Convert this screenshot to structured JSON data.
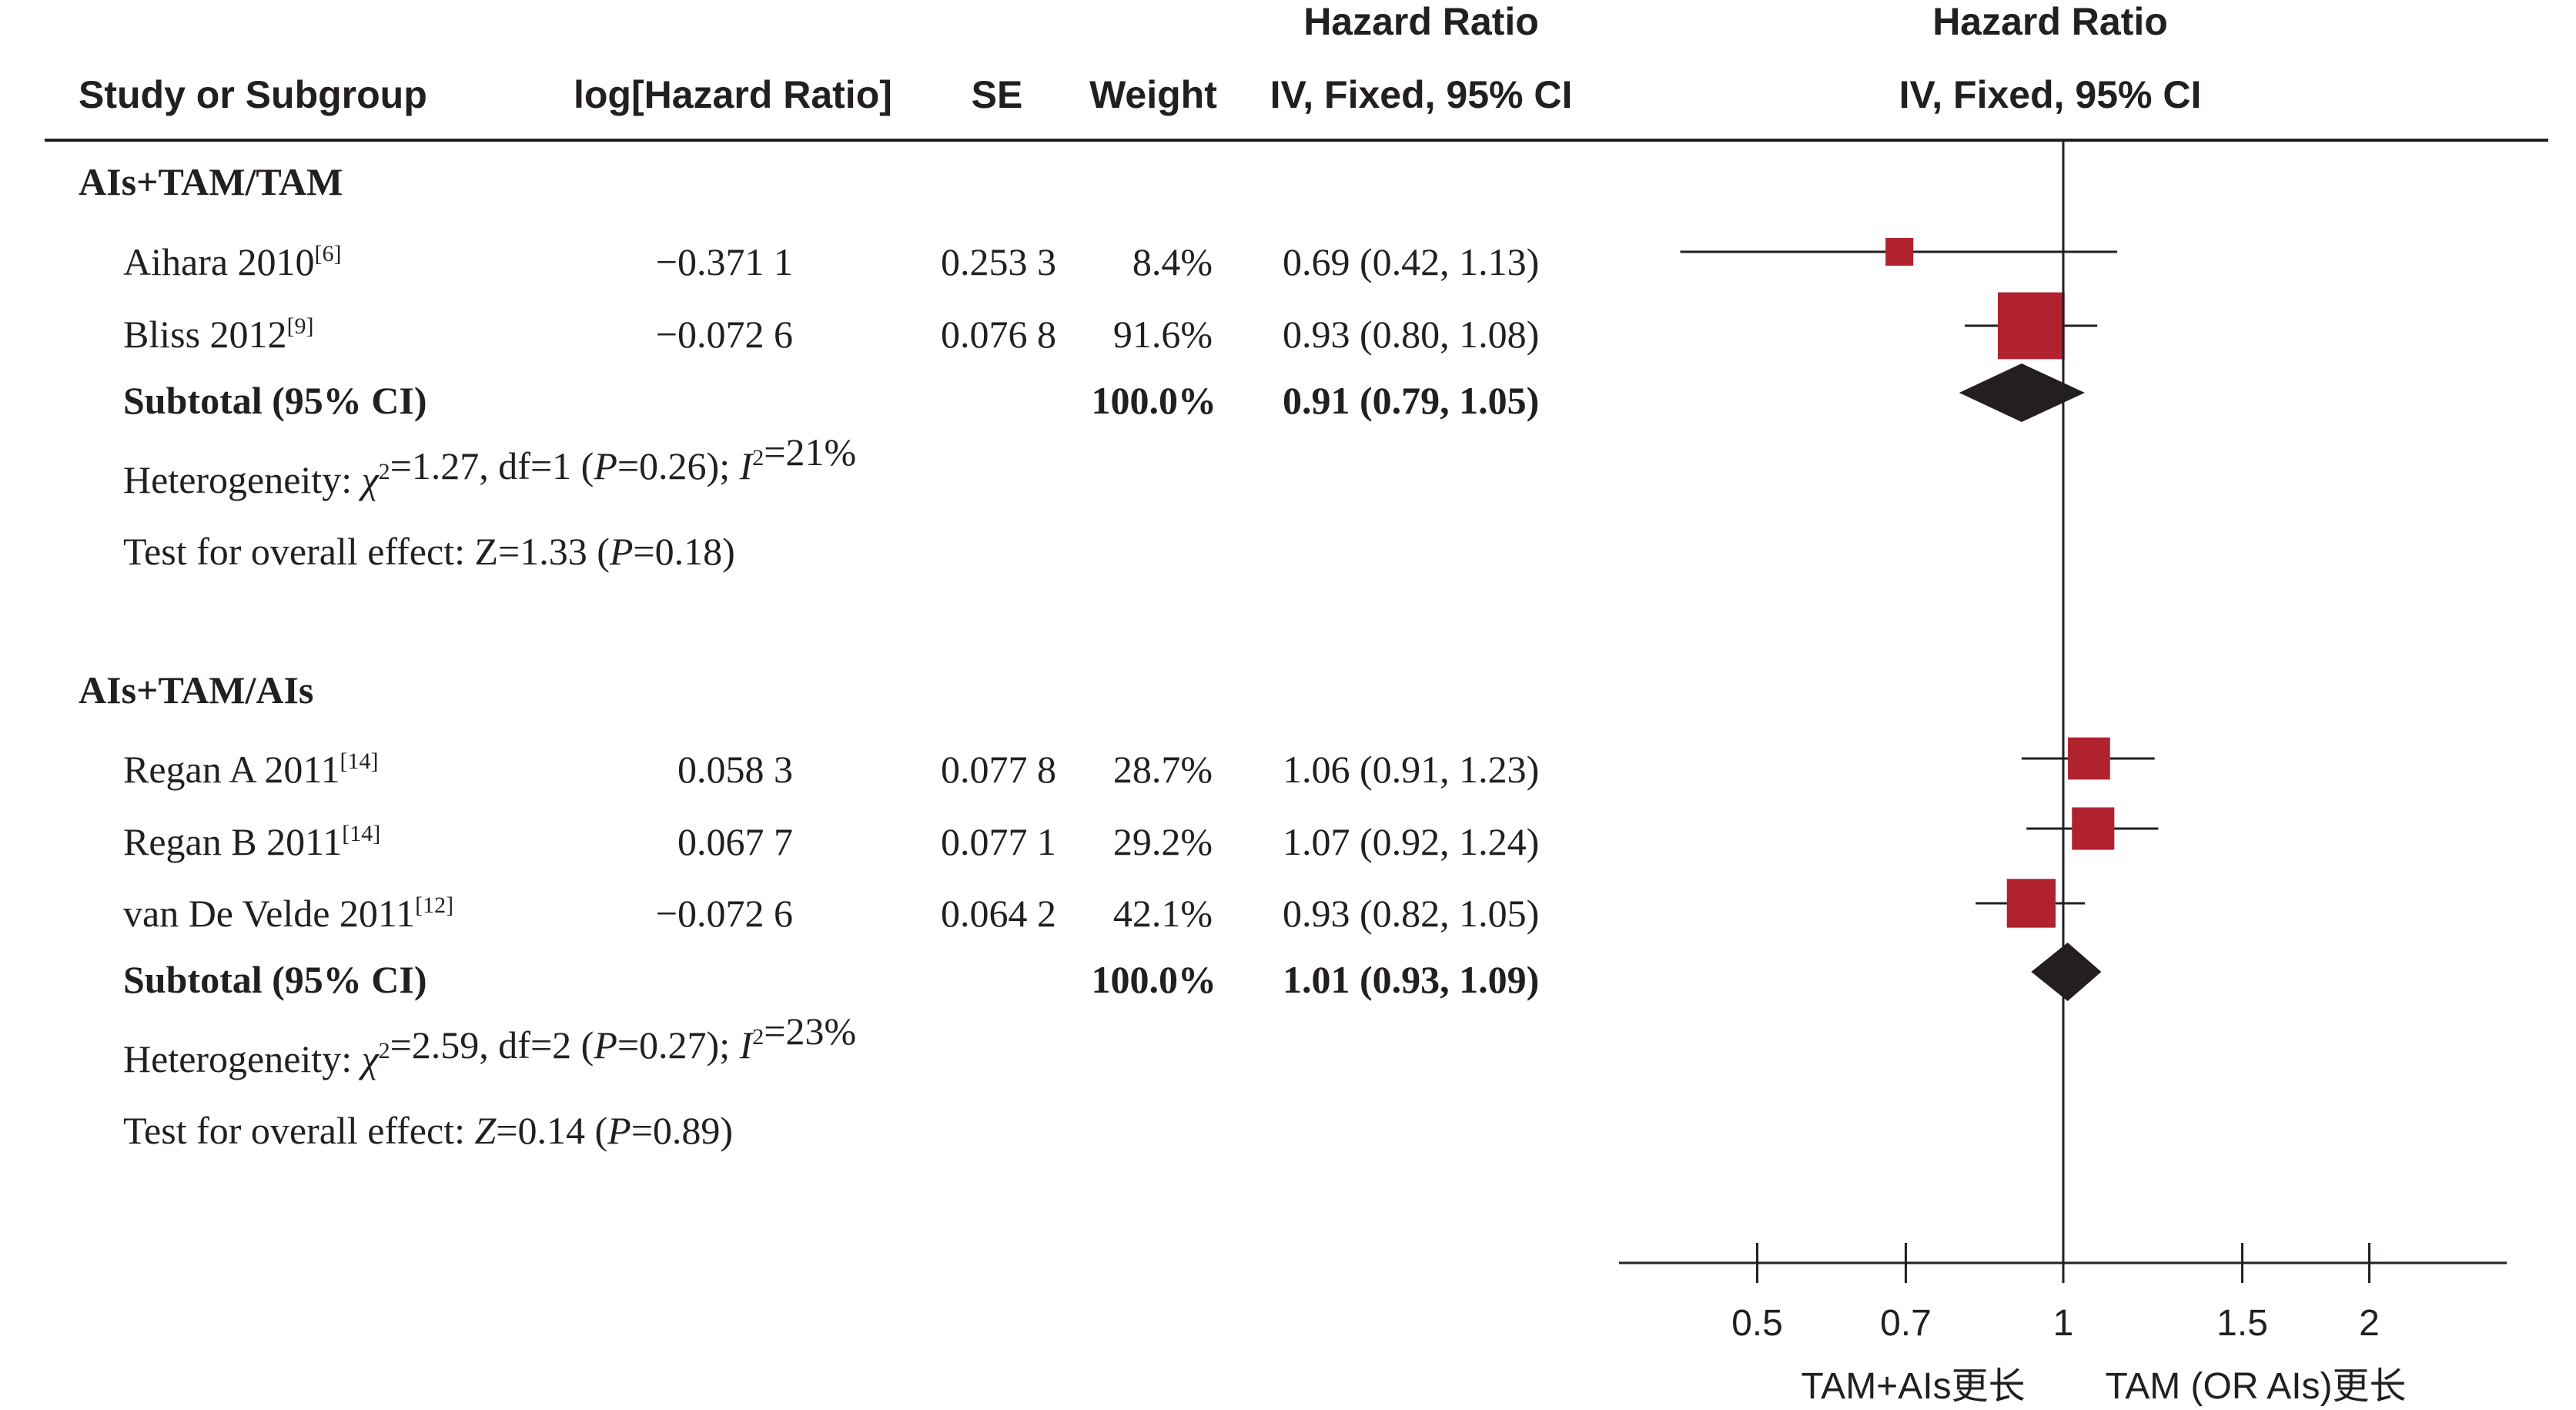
{
  "header": {
    "study": "Study or Subgroup",
    "loghr": "log[Hazard Ratio]",
    "se": "SE",
    "weight": "Weight",
    "hr_title": "Hazard Ratio",
    "hr_method": "IV, Fixed, 95% CI",
    "plot_title": "Hazard Ratio",
    "plot_method": "IV, Fixed, 95% CI"
  },
  "chart_data": {
    "type": "forest",
    "scale": "log",
    "reference_line": 1,
    "ticks": [
      0.5,
      0.7,
      1,
      1.5,
      2
    ],
    "tick_labels": [
      "0.5",
      "0.7",
      "1",
      "1.5",
      "2"
    ],
    "axis_caption_left": "TAM+AIs更长",
    "axis_caption_right": "TAM (OR AIs)更长",
    "colors": {
      "study_marker": "#b0222e",
      "diamond": "#231f20",
      "line": "#231f20"
    },
    "groups": [
      {
        "name": "AIs+TAM/TAM",
        "studies": [
          {
            "study": "Aihara 2010",
            "ref": "[6]",
            "loghr": "−0.371 1",
            "se": "0.253 3",
            "weight": "8.4%",
            "weight_value": 8.4,
            "ci_text": "0.69 (0.42, 1.13)",
            "hr": 0.69,
            "lo": 0.42,
            "hi": 1.13
          },
          {
            "study": "Bliss 2012",
            "ref": "[9]",
            "loghr": "−0.072 6",
            "se": "0.076 8",
            "weight": "91.6%",
            "weight_value": 91.6,
            "ci_text": "0.93 (0.80, 1.08)",
            "hr": 0.93,
            "lo": 0.8,
            "hi": 1.08
          }
        ],
        "subtotal": {
          "label": "Subtotal (95% CI)",
          "weight": "100.0%",
          "ci_text": "0.91 (0.79, 1.05)",
          "hr": 0.91,
          "lo": 0.79,
          "hi": 1.05
        },
        "heterogeneity": {
          "prefix": "Heterogeneity: ",
          "chi": "χ",
          "chi_rest": "=1.27, df=1 (",
          "p": "P",
          "p_rest": "=0.26); ",
          "i": "I",
          "i_rest": "=21%"
        },
        "overall": {
          "prefix": "Test for overall effect: Z=1.33 (",
          "p": "P",
          "rest": "=0.18)"
        }
      },
      {
        "name": "AIs+TAM/AIs",
        "studies": [
          {
            "study": "Regan A 2011",
            "ref": "[14]",
            "loghr": "0.058 3",
            "se": "0.077 8",
            "weight": "28.7%",
            "weight_value": 28.7,
            "ci_text": "1.06 (0.91, 1.23)",
            "hr": 1.06,
            "lo": 0.91,
            "hi": 1.23
          },
          {
            "study": "Regan B 2011",
            "ref": "[14]",
            "loghr": "0.067 7",
            "se": "0.077 1",
            "weight": "29.2%",
            "weight_value": 29.2,
            "ci_text": "1.07 (0.92, 1.24)",
            "hr": 1.07,
            "lo": 0.92,
            "hi": 1.24
          },
          {
            "study": "van De Velde 2011",
            "ref": "[12]",
            "loghr": "−0.072 6",
            "se": "0.064 2",
            "weight": "42.1%",
            "weight_value": 42.1,
            "ci_text": "0.93 (0.82, 1.05)",
            "hr": 0.93,
            "lo": 0.82,
            "hi": 1.05
          }
        ],
        "subtotal": {
          "label": "Subtotal (95% CI)",
          "weight": "100.0%",
          "ci_text": "1.01 (0.93, 1.09)",
          "hr": 1.01,
          "lo": 0.93,
          "hi": 1.09
        },
        "heterogeneity": {
          "prefix": "Heterogeneity: ",
          "chi": "χ",
          "chi_rest": "=2.59, df=2 (",
          "p": "P",
          "p_rest": "=0.27); ",
          "i": "I",
          "i_rest": "=23%"
        },
        "overall": {
          "prefix": "Test for overall effect: ",
          "z": "Z",
          "prefix2": "=0.14 (",
          "p": "P",
          "rest": "=0.89)"
        }
      }
    ]
  }
}
